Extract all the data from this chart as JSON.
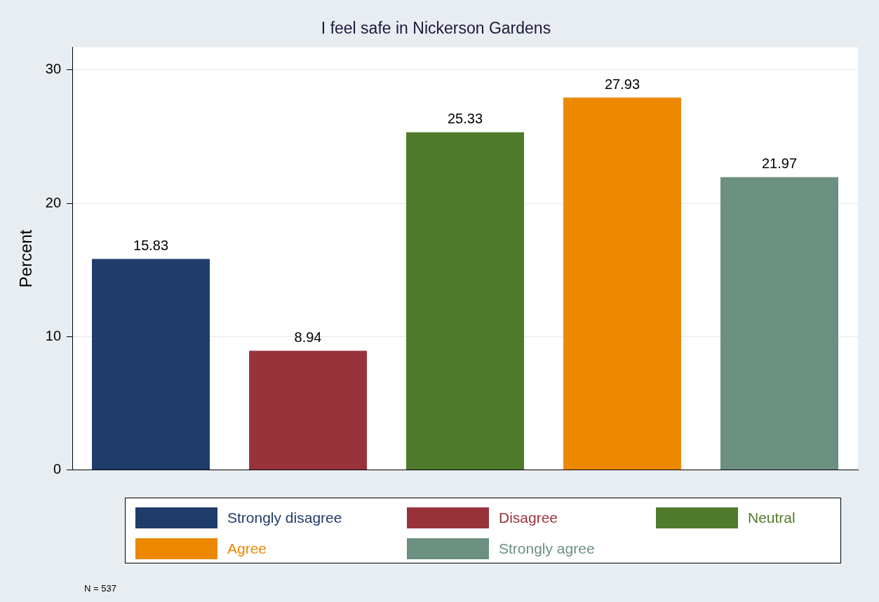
{
  "chart_data": {
    "type": "bar",
    "title": "I feel safe in Nickerson Gardens",
    "ylabel": "Percent",
    "categories": [
      null,
      null,
      null,
      null,
      null
    ],
    "series": [
      {
        "name": "Strongly disagree",
        "color": "#1f3c6b",
        "values": [
          15.83,
          null,
          null,
          null,
          null
        ]
      },
      {
        "name": "Disagree",
        "color": "#98333c",
        "values": [
          null,
          8.94,
          null,
          null,
          null
        ]
      },
      {
        "name": "Neutral",
        "color": "#4f7a2b",
        "values": [
          null,
          null,
          25.33,
          null,
          null
        ]
      },
      {
        "name": "Agree",
        "color": "#ec8900",
        "values": [
          null,
          null,
          null,
          27.93,
          null
        ]
      },
      {
        "name": "Strongly agree",
        "color": "#6b9080",
        "values": [
          null,
          null,
          null,
          null,
          21.97
        ]
      }
    ],
    "ylim": [
      0,
      31.7
    ],
    "yticks": [
      0,
      10,
      20,
      30
    ],
    "grid": "y",
    "legend": "bottom",
    "data_labels": true,
    "annotations": [
      "N = 537"
    ]
  }
}
